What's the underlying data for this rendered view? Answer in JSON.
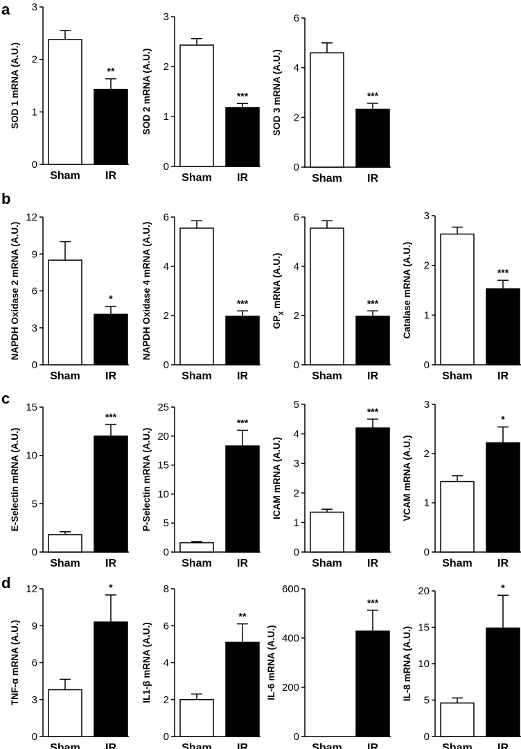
{
  "panels": [
    {
      "label": "a"
    },
    {
      "label": "b"
    },
    {
      "label": "c"
    },
    {
      "label": "d"
    }
  ],
  "chart_data": [
    {
      "panel": "a",
      "type": "bar",
      "ylabel": "SOD 1 mRNA (A.U.)",
      "categories": [
        "Sham",
        "IR"
      ],
      "values": [
        2.38,
        1.43
      ],
      "errors": [
        0.17,
        0.2
      ],
      "significance": [
        "",
        "**"
      ],
      "colors": [
        "#ffffff",
        "#000000"
      ],
      "ylim": [
        0,
        3
      ],
      "yticks": [
        "0",
        "1",
        "2",
        "3"
      ]
    },
    {
      "panel": "a",
      "type": "bar",
      "ylabel": "SOD 2 mRNA (A.U.)",
      "categories": [
        "Sham",
        "IR"
      ],
      "values": [
        2.43,
        1.18
      ],
      "errors": [
        0.13,
        0.08
      ],
      "significance": [
        "",
        "***"
      ],
      "colors": [
        "#ffffff",
        "#000000"
      ],
      "ylim": [
        0,
        3
      ],
      "yticks": [
        "0",
        "1",
        "2",
        "3"
      ]
    },
    {
      "panel": "a",
      "type": "bar",
      "ylabel": "SOD 3 mRNA (A.U.)",
      "categories": [
        "Sham",
        "IR"
      ],
      "values": [
        4.6,
        2.33
      ],
      "errors": [
        0.4,
        0.24
      ],
      "significance": [
        "",
        "***"
      ],
      "colors": [
        "#ffffff",
        "#000000"
      ],
      "ylim": [
        0,
        6
      ],
      "yticks": [
        "0",
        "2",
        "4",
        "6"
      ]
    },
    {
      "panel": "b",
      "type": "bar",
      "ylabel": "NAPDH Oxidase 2 mRNA (A.U.)",
      "categories": [
        "Sham",
        "IR"
      ],
      "values": [
        8.5,
        4.1
      ],
      "errors": [
        1.5,
        0.65
      ],
      "significance": [
        "",
        "*"
      ],
      "colors": [
        "#ffffff",
        "#000000"
      ],
      "ylim": [
        0,
        12
      ],
      "yticks": [
        "0",
        "3",
        "6",
        "9",
        "12"
      ]
    },
    {
      "panel": "b",
      "type": "bar",
      "ylabel": "NAPDH Oxidase 4 mRNA (A.U.)",
      "categories": [
        "Sham",
        "IR"
      ],
      "values": [
        5.55,
        1.97
      ],
      "errors": [
        0.3,
        0.22
      ],
      "significance": [
        "",
        "***"
      ],
      "colors": [
        "#ffffff",
        "#000000"
      ],
      "ylim": [
        0,
        6
      ],
      "yticks": [
        "0",
        "2",
        "4",
        "6"
      ]
    },
    {
      "panel": "b",
      "type": "bar",
      "ylabel": "GP",
      "ylabel_sub": "X",
      "ylabel_rest": " mRNA (A.U.)",
      "categories": [
        "Sham",
        "IR"
      ],
      "values": [
        5.55,
        1.97
      ],
      "errors": [
        0.3,
        0.22
      ],
      "significance": [
        "",
        "***"
      ],
      "colors": [
        "#ffffff",
        "#000000"
      ],
      "ylim": [
        0,
        6
      ],
      "yticks": [
        "0",
        "2",
        "4",
        "6"
      ]
    },
    {
      "panel": "b",
      "type": "bar",
      "ylabel": "Catalase mRNA (A.U.)",
      "categories": [
        "Sham",
        "IR"
      ],
      "values": [
        2.63,
        1.53
      ],
      "errors": [
        0.14,
        0.17
      ],
      "significance": [
        "",
        "***"
      ],
      "colors": [
        "#ffffff",
        "#000000"
      ],
      "ylim": [
        0,
        3
      ],
      "yticks": [
        "0",
        "1",
        "2",
        "3"
      ]
    },
    {
      "panel": "c",
      "type": "bar",
      "ylabel": "E-Selectin mRNA (A.U.)",
      "categories": [
        "Sham",
        "IR"
      ],
      "values": [
        1.8,
        12.0
      ],
      "errors": [
        0.3,
        1.2
      ],
      "significance": [
        "",
        "***"
      ],
      "colors": [
        "#ffffff",
        "#000000"
      ],
      "ylim": [
        0,
        15
      ],
      "yticks": [
        "0",
        "5",
        "10",
        "15"
      ]
    },
    {
      "panel": "c",
      "type": "bar",
      "ylabel": "P-Selectin mRNA (A.U.)",
      "categories": [
        "Sham",
        "IR"
      ],
      "values": [
        1.6,
        18.3
      ],
      "errors": [
        0.2,
        2.7
      ],
      "significance": [
        "",
        "***"
      ],
      "colors": [
        "#ffffff",
        "#000000"
      ],
      "ylim": [
        0,
        25
      ],
      "yticks": [
        "0",
        "5",
        "10",
        "15",
        "20",
        "25"
      ]
    },
    {
      "panel": "c",
      "type": "bar",
      "ylabel": "ICAM mRNA (A.U.)",
      "categories": [
        "Sham",
        "IR"
      ],
      "values": [
        1.35,
        4.2
      ],
      "errors": [
        0.1,
        0.3
      ],
      "significance": [
        "",
        "***"
      ],
      "colors": [
        "#ffffff",
        "#000000"
      ],
      "ylim": [
        0,
        5
      ],
      "yticks": [
        "0",
        "1",
        "2",
        "3",
        "4",
        "5"
      ]
    },
    {
      "panel": "c",
      "type": "bar",
      "ylabel": "VCAM mRNA (A.U.)",
      "categories": [
        "Sham",
        "IR"
      ],
      "values": [
        1.43,
        2.22
      ],
      "errors": [
        0.12,
        0.32
      ],
      "significance": [
        "",
        "*"
      ],
      "colors": [
        "#ffffff",
        "#000000"
      ],
      "ylim": [
        0,
        3
      ],
      "yticks": [
        "0",
        "1",
        "2",
        "3"
      ]
    },
    {
      "panel": "d",
      "type": "bar",
      "ylabel": "TNF-α mRNA (A.U.)",
      "categories": [
        "Sham",
        "IR"
      ],
      "values": [
        3.8,
        9.3
      ],
      "errors": [
        0.85,
        2.2
      ],
      "significance": [
        "",
        "*"
      ],
      "colors": [
        "#ffffff",
        "#000000"
      ],
      "ylim": [
        0,
        12
      ],
      "yticks": [
        "0",
        "3",
        "6",
        "9",
        "12"
      ]
    },
    {
      "panel": "d",
      "type": "bar",
      "ylabel": "IL1-β mRNA (A.U.)",
      "categories": [
        "Sham",
        "IR"
      ],
      "values": [
        2.0,
        5.1
      ],
      "errors": [
        0.3,
        1.0
      ],
      "significance": [
        "",
        "**"
      ],
      "colors": [
        "#ffffff",
        "#000000"
      ],
      "ylim": [
        0,
        8
      ],
      "yticks": [
        "0",
        "2",
        "4",
        "6",
        "8"
      ]
    },
    {
      "panel": "d",
      "type": "bar",
      "ylabel": "IL-6 mRNA (A.U.)",
      "categories": [
        "Sham",
        "IR"
      ],
      "values": [
        0.0,
        428
      ],
      "errors": [
        0.0,
        85
      ],
      "significance": [
        "",
        "***"
      ],
      "colors": [
        "#ffffff",
        "#000000"
      ],
      "ylim": [
        0,
        600
      ],
      "yticks": [
        "0",
        "200",
        "400",
        "600"
      ]
    },
    {
      "panel": "d",
      "type": "bar",
      "ylabel": "IL-8 mRNA (A.U.)",
      "categories": [
        "Sham",
        "IR"
      ],
      "values": [
        4.6,
        14.9
      ],
      "errors": [
        0.7,
        4.5
      ],
      "significance": [
        "",
        "*"
      ],
      "colors": [
        "#ffffff",
        "#000000"
      ],
      "ylim": [
        0,
        20
      ],
      "yticks": [
        "0",
        "5",
        "10",
        "15",
        "20"
      ]
    }
  ]
}
